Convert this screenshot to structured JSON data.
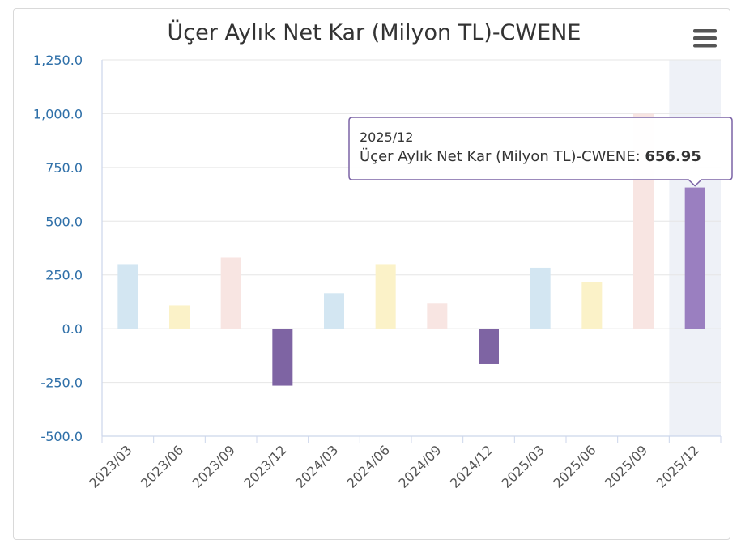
{
  "chart_data": {
    "type": "bar",
    "title": "Üçer Aylık Net Kar (Milyon TL)-CWENE",
    "xlabel": "",
    "ylabel": "",
    "ylim": [
      -500,
      1250
    ],
    "yticks": [
      "-500.0",
      "-250.0",
      "0.0",
      "250.0",
      "500.0",
      "750.0",
      "1,000.0",
      "1,250.0"
    ],
    "ytick_values": [
      -500,
      -250,
      0,
      250,
      500,
      750,
      1000,
      1250
    ],
    "categories": [
      "2023/03",
      "2023/06",
      "2023/09",
      "2023/12",
      "2024/03",
      "2024/06",
      "2024/09",
      "2024/12",
      "2025/03",
      "2025/06",
      "2025/09",
      "2025/12"
    ],
    "values": [
      300,
      108,
      330,
      -265,
      165,
      300,
      120,
      -165,
      283,
      215,
      1000,
      656.95
    ],
    "bar_colors": [
      "#d3e6f2",
      "#fbf2c8",
      "#f8e5e2",
      "#7e64a3",
      "#d3e6f2",
      "#fbf2c8",
      "#f8e5e2",
      "#7e64a3",
      "#d3e6f2",
      "#fbf2c8",
      "#f8e5e2",
      "#9a7fc0"
    ],
    "highlight_index": 11,
    "highlight_band_color": "#eef1f7",
    "grid": true,
    "tooltip": {
      "category": "2025/12",
      "series_label": "Üçer Aylık Net Kar (Milyon TL)-CWENE: ",
      "value": "656.95"
    }
  },
  "menu_icon": "hamburger-menu-icon"
}
